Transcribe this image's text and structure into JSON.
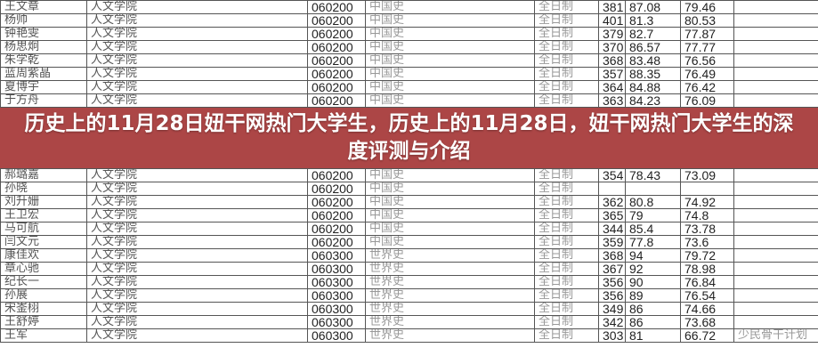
{
  "title": "历史上的11月28日妞干网热门大学生，历史上的11月28日，妞干网热门大学生的深度评测与介绍",
  "colors": {
    "banner": "#9e2626"
  },
  "rows": [
    [
      "王文章",
      "人文学院",
      "060200",
      "中国史",
      "全日制",
      "381",
      "87.08",
      "79.46",
      ""
    ],
    [
      "杨帅",
      "人文学院",
      "060200",
      "中国史",
      "全日制",
      "401",
      "81.3",
      "80.53",
      ""
    ],
    [
      "钟艳雯",
      "人文学院",
      "060200",
      "中国史",
      "全日制",
      "379",
      "82.7",
      "77.87",
      ""
    ],
    [
      "杨思炯",
      "人文学院",
      "060200",
      "中国史",
      "全日制",
      "370",
      "86.57",
      "77.77",
      ""
    ],
    [
      "朱学乾",
      "人文学院",
      "060200",
      "中国史",
      "全日制",
      "368",
      "83.48",
      "76.56",
      ""
    ],
    [
      "蓝周紫晶",
      "人文学院",
      "060200",
      "中国史",
      "全日制",
      "357",
      "88.35",
      "76.49",
      ""
    ],
    [
      "夏博宇",
      "人文学院",
      "060200",
      "中国史",
      "全日制",
      "364",
      "84.88",
      "76.42",
      ""
    ],
    [
      "于方舟",
      "人文学院",
      "060200",
      "中国史",
      "全日制",
      "363",
      "84.23",
      "76.09",
      ""
    ],
    [
      "郝璐嘉",
      "人文学院",
      "060200",
      "中国史",
      "全日制",
      "354",
      "78.43",
      "73.09",
      ""
    ],
    [
      "孙晓",
      "人文学院",
      "060200",
      "中国史",
      "全日制",
      "",
      "",
      "",
      ""
    ],
    [
      "刘升姗",
      "人文学院",
      "060200",
      "中国史",
      "全日制",
      "362",
      "80.8",
      "74.92",
      ""
    ],
    [
      "王卫宏",
      "人文学院",
      "060200",
      "中国史",
      "全日制",
      "365",
      "79",
      "74.8",
      ""
    ],
    [
      "马可航",
      "人文学院",
      "060200",
      "中国史",
      "全日制",
      "344",
      "85.4",
      "73.78",
      ""
    ],
    [
      "闫文元",
      "人文学院",
      "060200",
      "中国史",
      "全日制",
      "359",
      "77.8",
      "73.6",
      ""
    ],
    [
      "康佳欢",
      "人文学院",
      "060300",
      "世界史",
      "全日制",
      "368",
      "94",
      "79.72",
      ""
    ],
    [
      "章心驰",
      "人文学院",
      "060300",
      "世界史",
      "全日制",
      "367",
      "92",
      "78.98",
      ""
    ],
    [
      "纪长一",
      "人文学院",
      "060300",
      "世界史",
      "全日制",
      "356",
      "90",
      "76.84",
      ""
    ],
    [
      "孙展",
      "人文学院",
      "060300",
      "世界史",
      "全日制",
      "356",
      "89",
      "76.54",
      ""
    ],
    [
      "宋崟栩",
      "人文学院",
      "060300",
      "世界史",
      "全日制",
      "349",
      "86",
      "74.66",
      ""
    ],
    [
      "王舒婷",
      "人文学院",
      "060300",
      "世界史",
      "全日制",
      "342",
      "86",
      "73.68",
      ""
    ],
    [
      "王军",
      "人文学院",
      "060300",
      "世界史",
      "全日制",
      "303",
      "81",
      "66.72",
      "少民骨干计划"
    ]
  ]
}
